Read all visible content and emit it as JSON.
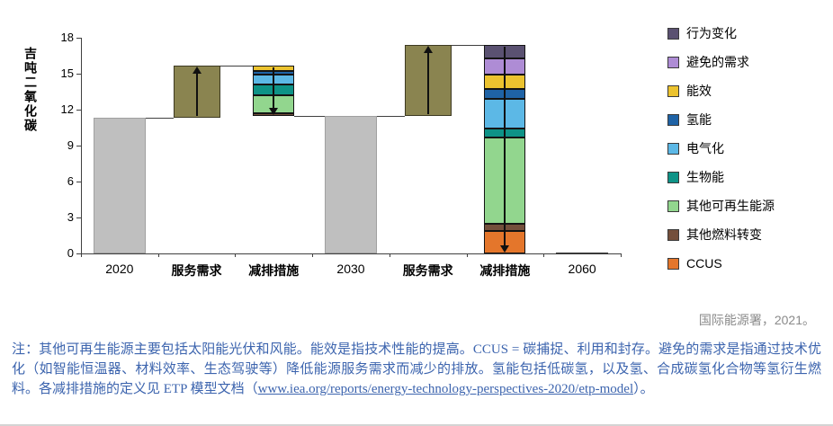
{
  "chart_data": {
    "type": "bar",
    "subtype": "stacked-waterfall",
    "title": "",
    "ylabel": "吉吨二氧化碳",
    "ylim": [
      0,
      18
    ],
    "yticks": [
      0,
      3,
      6,
      9,
      12,
      15,
      18
    ],
    "grid": false,
    "legend_position": "right",
    "categories": [
      "2020",
      "服务需求",
      "减排措施",
      "2030",
      "服务需求",
      "减排措施",
      "2060"
    ],
    "legend": [
      {
        "label": "行为变化",
        "color": "#5a5171"
      },
      {
        "label": "避免的需求",
        "color": "#ae8cd5"
      },
      {
        "label": "能效",
        "color": "#ecc32f"
      },
      {
        "label": "氢能",
        "color": "#1f63a6"
      },
      {
        "label": "电气化",
        "color": "#5cb8e6"
      },
      {
        "label": "生物能",
        "color": "#0e9387"
      },
      {
        "label": "其他可再生能源",
        "color": "#92d68e"
      },
      {
        "label": "其他燃料转变",
        "color": "#744f3b"
      },
      {
        "label": "CCUS",
        "color": "#e4762b"
      }
    ],
    "bars": [
      {
        "category": "2020",
        "kind": "level",
        "base": 0,
        "top": 11.3,
        "color": "#bfbfbf"
      },
      {
        "category": "服务需求",
        "kind": "growth",
        "base": 11.3,
        "top": 15.7,
        "color": "#8a8450",
        "arrow": "up"
      },
      {
        "category": "减排措施",
        "kind": "stacked",
        "base": 11.5,
        "arrow": "down",
        "segments": [
          {
            "name": "其他燃料转变",
            "value": 0.2
          },
          {
            "name": "其他可再生能源",
            "value": 1.5
          },
          {
            "name": "生物能",
            "value": 0.9
          },
          {
            "name": "电气化",
            "value": 0.8
          },
          {
            "name": "氢能",
            "value": 0.3
          },
          {
            "name": "能效",
            "value": 0.5
          }
        ]
      },
      {
        "category": "2030",
        "kind": "level",
        "base": 0,
        "top": 11.5,
        "color": "#bfbfbf"
      },
      {
        "category": "服务需求",
        "kind": "growth",
        "base": 11.5,
        "top": 17.4,
        "color": "#8a8450",
        "arrow": "up"
      },
      {
        "category": "减排措施",
        "kind": "stacked",
        "base": 0,
        "arrow": "down",
        "segments": [
          {
            "name": "CCUS",
            "value": 1.9
          },
          {
            "name": "其他燃料转变",
            "value": 0.6
          },
          {
            "name": "其他可再生能源",
            "value": 7.2
          },
          {
            "name": "生物能",
            "value": 0.7
          },
          {
            "name": "电气化",
            "value": 2.5
          },
          {
            "name": "氢能",
            "value": 0.8
          },
          {
            "name": "能效",
            "value": 1.2
          },
          {
            "name": "避免的需求",
            "value": 1.4
          },
          {
            "name": "行为变化",
            "value": 1.1
          }
        ]
      },
      {
        "category": "2060",
        "kind": "level",
        "base": 0,
        "top": 0.1,
        "color": "#3a3a3a"
      }
    ],
    "connectors": [
      {
        "from": 0,
        "to": 1,
        "value": 11.3
      },
      {
        "from": 1,
        "to": 2,
        "value": 15.7
      },
      {
        "from": 2,
        "to": 3,
        "value": 11.5
      },
      {
        "from": 3,
        "to": 4,
        "value": 11.5
      },
      {
        "from": 4,
        "to": 5,
        "value": 17.4
      }
    ]
  },
  "source": "国际能源署，2021。",
  "note": {
    "pre": "注：其他可再生能源主要包括太阳能光伏和风能。能效是指技术性能的提高。CCUS = 碳捕捉、利用和封存。避免的需求是指通过技术优化（如智能恒温器、材料效率、生态驾驶等）降低能源服务需求而减少的排放。氢能包括低碳氢，以及氢、合成碳氢化合物等氢衍生燃料。各减排措施的定义见 ETP 模型文档（",
    "url": "www.iea.org/reports/energy-technology-perspectives-2020/etp-model",
    "post": "）。"
  }
}
